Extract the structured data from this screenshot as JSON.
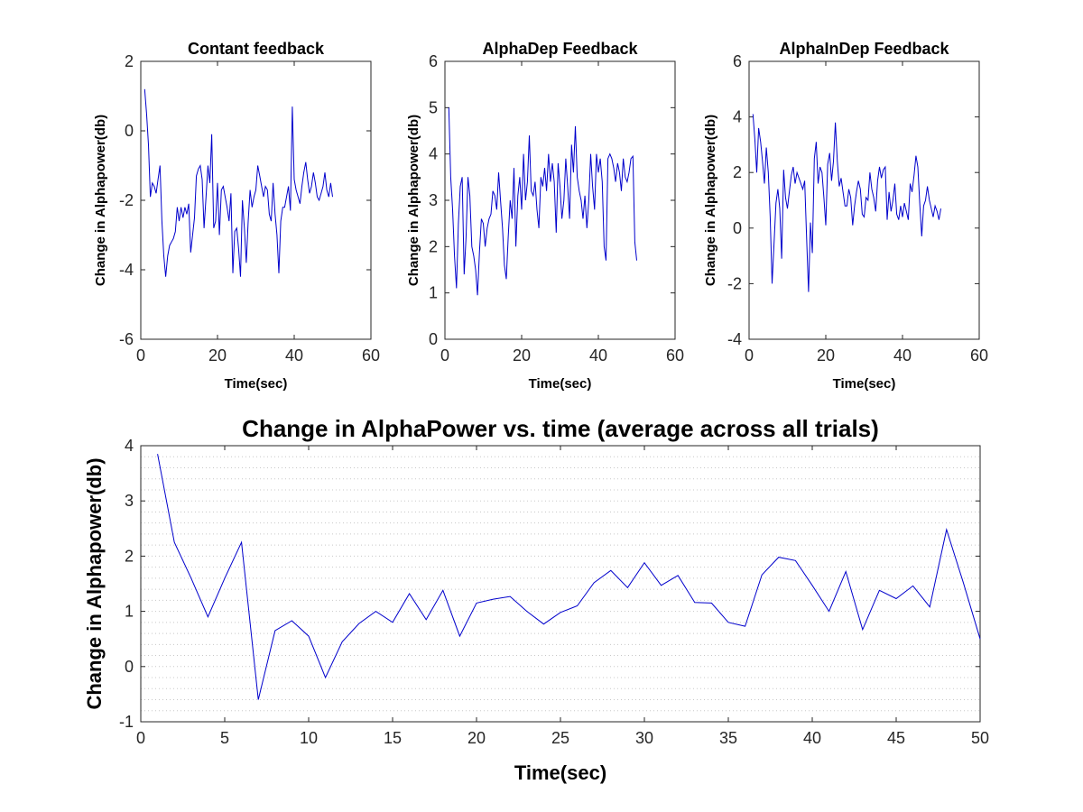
{
  "chart_data": [
    {
      "type": "line",
      "title": "Contant feedback",
      "xlabel": "Time(sec)",
      "ylabel": "Change in Alphapower(db)",
      "xlim": [
        0,
        60
      ],
      "ylim": [
        -6,
        2
      ],
      "xticks": [
        0,
        20,
        40,
        60
      ],
      "yticks": [
        -6,
        -4,
        -2,
        0,
        2
      ],
      "grid": false,
      "line_color": "#0000cc",
      "x": [
        1,
        1.5,
        2,
        2.5,
        3,
        3.5,
        4,
        4.5,
        5,
        5.5,
        6,
        6.5,
        7,
        7.5,
        8,
        8.5,
        9,
        9.5,
        10,
        10.5,
        11,
        11.5,
        12,
        12.5,
        13,
        13.5,
        14,
        14.5,
        15,
        15.5,
        16,
        16.5,
        17,
        17.5,
        18,
        18.5,
        19,
        19.5,
        20,
        20.5,
        21,
        21.5,
        22,
        22.5,
        23,
        23.5,
        24,
        24.5,
        25,
        25.5,
        26,
        26.5,
        27,
        27.5,
        28,
        28.5,
        29,
        29.5,
        30,
        30.5,
        31,
        31.5,
        32,
        32.5,
        33,
        33.5,
        34,
        34.5,
        35,
        35.5,
        36,
        36.5,
        37,
        37.5,
        38,
        38.5,
        39,
        39.5,
        40,
        40.5,
        41,
        41.5,
        42,
        42.5,
        43,
        43.5,
        44,
        44.5,
        45,
        45.5,
        46,
        46.5,
        47,
        47.5,
        48,
        48.5,
        49,
        49.5,
        50
      ],
      "y": [
        1.2,
        0.5,
        -0.4,
        -1.9,
        -1.5,
        -1.6,
        -1.8,
        -1.4,
        -1.0,
        -2.6,
        -3.6,
        -4.2,
        -3.6,
        -3.3,
        -3.2,
        -3.1,
        -2.9,
        -2.2,
        -2.6,
        -2.2,
        -2.5,
        -2.2,
        -2.4,
        -2.1,
        -3.5,
        -3.0,
        -2.5,
        -1.3,
        -1.1,
        -1.0,
        -1.4,
        -2.8,
        -1.9,
        -1.0,
        -1.5,
        -0.1,
        -2.8,
        -2.6,
        -1.5,
        -3.0,
        -1.7,
        -1.6,
        -1.9,
        -2.2,
        -2.6,
        -1.8,
        -4.1,
        -2.9,
        -2.8,
        -3.4,
        -4.2,
        -2.0,
        -2.8,
        -3.8,
        -2.6,
        -1.7,
        -2.2,
        -1.9,
        -1.7,
        -1.0,
        -1.3,
        -1.6,
        -1.9,
        -1.6,
        -1.7,
        -2.4,
        -2.6,
        -1.5,
        -2.4,
        -3.0,
        -4.1,
        -2.6,
        -2.2,
        -2.2,
        -1.9,
        -1.6,
        -2.3,
        0.7,
        -1.4,
        -1.7,
        -1.9,
        -2.1,
        -1.6,
        -1.2,
        -0.9,
        -1.4,
        -1.8,
        -1.6,
        -1.2,
        -1.5,
        -1.9,
        -2.0,
        -1.8,
        -1.6,
        -1.2,
        -1.7,
        -1.9,
        -1.5,
        -1.9
      ]
    },
    {
      "type": "line",
      "title": "AlphaDep Feedback",
      "xlabel": "Time(sec)",
      "ylabel": "Change in Alphapower(db)",
      "xlim": [
        0,
        60
      ],
      "ylim": [
        0,
        6
      ],
      "xticks": [
        0,
        20,
        40,
        60
      ],
      "yticks": [
        0,
        1,
        2,
        3,
        4,
        5,
        6
      ],
      "grid": false,
      "line_color": "#0000cc",
      "x": [
        1,
        1.5,
        2,
        2.5,
        3,
        3.5,
        4,
        4.5,
        5,
        5.5,
        6,
        6.5,
        7,
        7.5,
        8,
        8.5,
        9,
        9.5,
        10,
        10.5,
        11,
        11.5,
        12,
        12.5,
        13,
        13.5,
        14,
        14.5,
        15,
        15.5,
        16,
        16.5,
        17,
        17.5,
        18,
        18.5,
        19,
        19.5,
        20,
        20.5,
        21,
        21.5,
        22,
        22.5,
        23,
        23.5,
        24,
        24.5,
        25,
        25.5,
        26,
        26.5,
        27,
        27.5,
        28,
        28.5,
        29,
        29.5,
        30,
        30.5,
        31,
        31.5,
        32,
        32.5,
        33,
        33.5,
        34,
        34.5,
        35,
        35.5,
        36,
        36.5,
        37,
        37.5,
        38,
        38.5,
        39,
        39.5,
        40,
        40.5,
        41,
        41.5,
        42,
        42.5,
        43,
        43.5,
        44,
        44.5,
        45,
        45.5,
        46,
        46.5,
        47,
        47.5,
        48,
        48.5,
        49,
        49.5,
        50
      ],
      "y": [
        5.0,
        3.5,
        2.8,
        1.8,
        1.1,
        2.5,
        3.3,
        3.5,
        1.4,
        2.2,
        3.5,
        3.1,
        2.0,
        1.8,
        1.5,
        0.95,
        1.9,
        2.6,
        2.5,
        2.0,
        2.4,
        2.6,
        2.7,
        3.2,
        3.1,
        2.8,
        3.6,
        3.0,
        2.4,
        1.6,
        1.3,
        2.2,
        3.0,
        2.6,
        3.7,
        2.0,
        3.1,
        3.5,
        2.8,
        4.0,
        3.0,
        3.4,
        4.4,
        3.2,
        3.1,
        3.4,
        2.8,
        2.4,
        3.5,
        3.3,
        3.7,
        3.2,
        4.0,
        3.4,
        3.8,
        3.4,
        2.3,
        3.8,
        3.3,
        2.6,
        3.0,
        3.9,
        3.3,
        2.6,
        4.2,
        3.6,
        4.6,
        3.5,
        3.2,
        3.0,
        2.6,
        3.1,
        2.4,
        3.0,
        4.0,
        3.3,
        2.8,
        4.0,
        3.6,
        3.9,
        3.4,
        2.0,
        1.7,
        3.9,
        4.0,
        3.9,
        3.7,
        3.4,
        3.8,
        3.6,
        3.2,
        3.9,
        3.5,
        3.4,
        3.6,
        3.9,
        3.95,
        2.1,
        1.7
      ]
    },
    {
      "type": "line",
      "title": "AlphaInDep Feedback",
      "xlabel": "Time(sec)",
      "ylabel": "Change in Alphapower(db)",
      "xlim": [
        0,
        60
      ],
      "ylim": [
        -4,
        6
      ],
      "xticks": [
        0,
        20,
        40,
        60
      ],
      "yticks": [
        -4,
        -2,
        0,
        2,
        4,
        6
      ],
      "grid": false,
      "line_color": "#0000cc",
      "x": [
        1,
        1.5,
        2,
        2.5,
        3,
        3.5,
        4,
        4.5,
        5,
        5.5,
        6,
        6.5,
        7,
        7.5,
        8,
        8.5,
        9,
        9.5,
        10,
        10.5,
        11,
        11.5,
        12,
        12.5,
        13,
        13.5,
        14,
        14.5,
        15,
        15.5,
        16,
        16.5,
        17,
        17.5,
        18,
        18.5,
        19,
        19.5,
        20,
        20.5,
        21,
        21.5,
        22,
        22.5,
        23,
        23.5,
        24,
        24.5,
        25,
        25.5,
        26,
        26.5,
        27,
        27.5,
        28,
        28.5,
        29,
        29.5,
        30,
        30.5,
        31,
        31.5,
        32,
        32.5,
        33,
        33.5,
        34,
        34.5,
        35,
        35.5,
        36,
        36.5,
        37,
        37.5,
        38,
        38.5,
        39,
        39.5,
        40,
        40.5,
        41,
        41.5,
        42,
        42.5,
        43,
        43.5,
        44,
        44.5,
        45,
        45.5,
        46,
        46.5,
        47,
        47.5,
        48,
        48.5,
        49,
        49.5,
        50
      ],
      "y": [
        4.1,
        3.2,
        2.0,
        3.6,
        3.1,
        2.4,
        1.6,
        2.9,
        2.0,
        0.4,
        -2.0,
        -0.6,
        0.9,
        1.4,
        0.7,
        -1.1,
        2.1,
        1.1,
        0.7,
        1.3,
        1.9,
        2.2,
        1.6,
        2.0,
        1.8,
        1.6,
        1.4,
        1.7,
        -0.4,
        -2.3,
        0.2,
        -0.9,
        2.5,
        3.1,
        1.6,
        2.2,
        2.0,
        1.1,
        0.1,
        2.3,
        2.7,
        1.7,
        2.4,
        3.8,
        2.4,
        1.5,
        1.8,
        1.3,
        0.8,
        0.8,
        1.4,
        1.1,
        0.1,
        0.8,
        1.3,
        1.7,
        1.4,
        0.5,
        0.4,
        1.1,
        1.0,
        2.0,
        1.4,
        1.1,
        0.6,
        1.7,
        2.2,
        1.8,
        2.1,
        2.2,
        0.3,
        1.3,
        0.6,
        1.0,
        1.6,
        0.5,
        0.3,
        0.8,
        0.4,
        0.9,
        0.6,
        0.3,
        1.6,
        1.3,
        1.9,
        2.6,
        2.2,
        0.9,
        -0.3,
        0.8,
        1.0,
        1.5,
        1.0,
        0.7,
        0.4,
        0.8,
        0.6,
        0.3,
        0.7
      ]
    },
    {
      "type": "line",
      "title": "Change in AlphaPower  vs. time (average across all trials)",
      "xlabel": "Time(sec)",
      "ylabel": "Change in Alphapower(db)",
      "xlim": [
        0,
        50
      ],
      "ylim": [
        -1,
        4
      ],
      "xticks": [
        0,
        5,
        10,
        15,
        20,
        25,
        30,
        35,
        40,
        45,
        50
      ],
      "yticks": [
        -1,
        0,
        1,
        2,
        3,
        4
      ],
      "grid": "y-minor dotted",
      "line_color": "#0000cc",
      "x": [
        1,
        2,
        3,
        4,
        5,
        6,
        7,
        8,
        9,
        10,
        11,
        12,
        13,
        14,
        15,
        16,
        17,
        18,
        19,
        20,
        21,
        22,
        23,
        24,
        25,
        26,
        27,
        28,
        29,
        30,
        31,
        32,
        33,
        34,
        35,
        36,
        37,
        38,
        39,
        40,
        41,
        42,
        43,
        44,
        45,
        46,
        47,
        48,
        49,
        50
      ],
      "y": [
        3.85,
        2.25,
        1.6,
        0.9,
        1.6,
        2.25,
        -0.6,
        0.65,
        0.83,
        0.55,
        -0.2,
        0.45,
        0.78,
        1.0,
        0.8,
        1.32,
        0.85,
        1.38,
        0.55,
        1.15,
        1.22,
        1.27,
        1.0,
        0.77,
        0.98,
        1.1,
        1.52,
        1.74,
        1.43,
        1.88,
        1.47,
        1.65,
        1.16,
        1.15,
        0.8,
        0.73,
        1.66,
        1.98,
        1.92,
        1.47,
        1.0,
        1.72,
        0.67,
        1.38,
        1.23,
        1.46,
        1.08,
        2.48,
        1.52,
        0.5
      ]
    }
  ]
}
